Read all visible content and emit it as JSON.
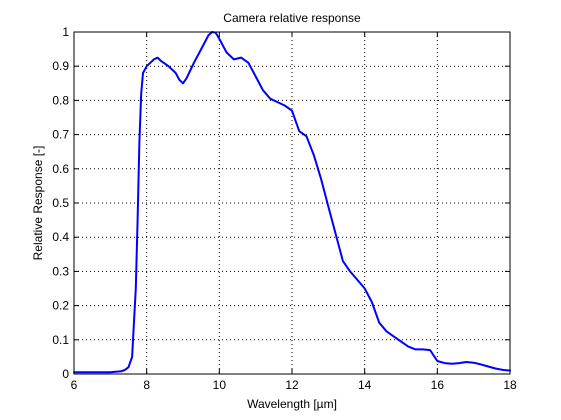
{
  "chart_data": {
    "type": "line",
    "title": "Camera relative response",
    "xlabel": "Wavelength [µm]",
    "ylabel": "Relative Response [-]",
    "xlim": [
      6,
      18
    ],
    "ylim": [
      0,
      1
    ],
    "x_ticks": [
      6,
      8,
      10,
      12,
      14,
      16,
      18
    ],
    "x_tick_labels": [
      "6",
      "8",
      "10",
      "12",
      "14",
      "16",
      "18"
    ],
    "y_ticks": [
      0,
      0.1,
      0.2,
      0.3,
      0.4,
      0.5,
      0.6,
      0.7,
      0.8,
      0.9,
      1
    ],
    "y_tick_labels": [
      "0",
      "0.1",
      "0.2",
      "0.3",
      "0.4",
      "0.5",
      "0.6",
      "0.7",
      "0.8",
      "0.9",
      "1"
    ],
    "grid": true,
    "series": [
      {
        "color": "#0000ff",
        "x": [
          6.0,
          7.0,
          7.3,
          7.4,
          7.5,
          7.6,
          7.7,
          7.75,
          7.8,
          7.85,
          7.9,
          8.0,
          8.1,
          8.2,
          8.3,
          8.4,
          8.6,
          8.8,
          8.9,
          9.0,
          9.1,
          9.3,
          9.5,
          9.7,
          9.8,
          9.9,
          10.0,
          10.2,
          10.4,
          10.6,
          10.8,
          11.0,
          11.2,
          11.4,
          11.6,
          11.8,
          12.0,
          12.1,
          12.2,
          12.4,
          12.6,
          12.8,
          13.0,
          13.2,
          13.4,
          13.6,
          13.8,
          14.0,
          14.2,
          14.4,
          14.6,
          14.8,
          15.0,
          15.2,
          15.4,
          15.6,
          15.8,
          16.0,
          16.2,
          16.4,
          16.6,
          16.8,
          17.0,
          17.2,
          17.4,
          17.6,
          17.8,
          18.0
        ],
        "y": [
          0.005,
          0.005,
          0.008,
          0.012,
          0.02,
          0.05,
          0.25,
          0.45,
          0.68,
          0.82,
          0.88,
          0.9,
          0.91,
          0.92,
          0.925,
          0.915,
          0.9,
          0.88,
          0.86,
          0.85,
          0.865,
          0.91,
          0.95,
          0.99,
          1.0,
          0.998,
          0.98,
          0.94,
          0.92,
          0.925,
          0.91,
          0.87,
          0.83,
          0.805,
          0.795,
          0.785,
          0.77,
          0.74,
          0.71,
          0.695,
          0.64,
          0.57,
          0.49,
          0.41,
          0.33,
          0.3,
          0.275,
          0.25,
          0.21,
          0.15,
          0.125,
          0.11,
          0.095,
          0.08,
          0.072,
          0.072,
          0.07,
          0.038,
          0.032,
          0.03,
          0.032,
          0.035,
          0.033,
          0.028,
          0.022,
          0.016,
          0.012,
          0.01
        ]
      }
    ]
  }
}
